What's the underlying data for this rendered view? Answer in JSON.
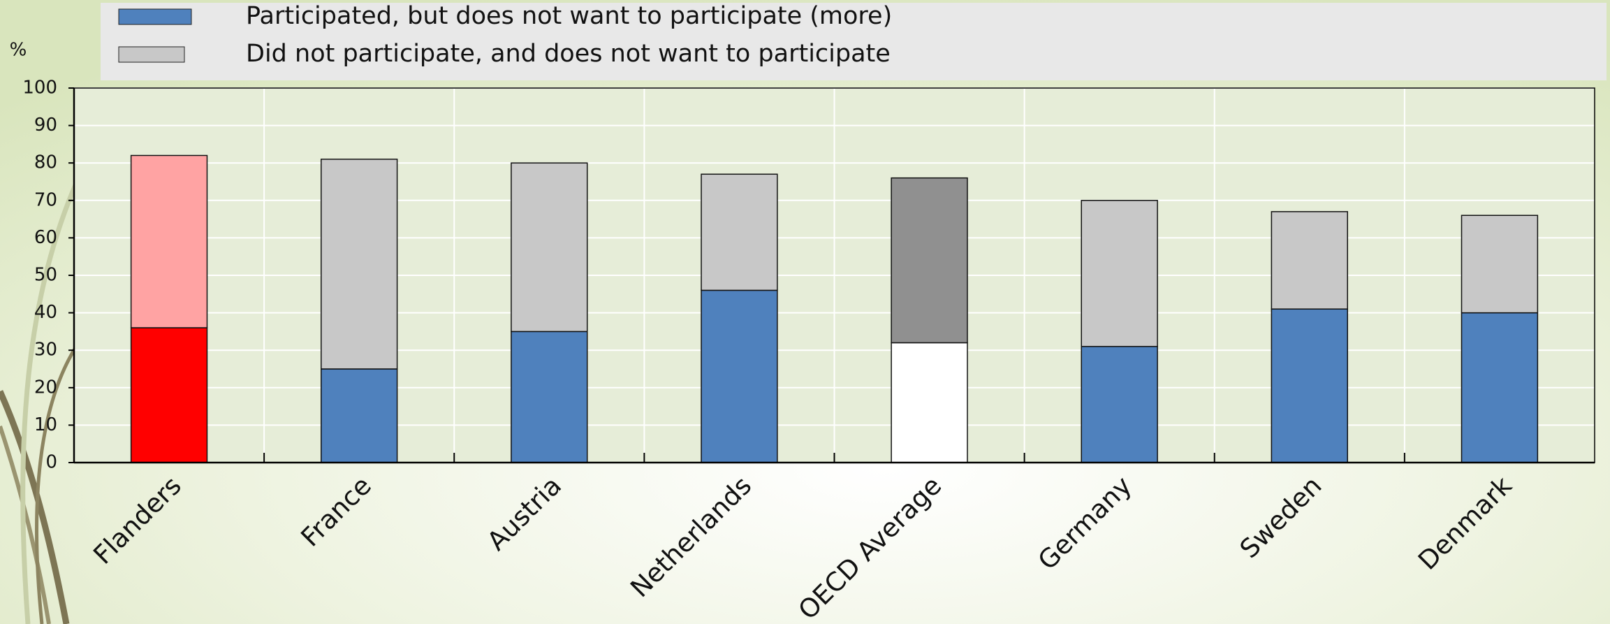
{
  "chart_data": {
    "type": "stacked_bar",
    "y_label": "%",
    "categories": [
      "Flanders",
      "France",
      "Austria",
      "Netherlands",
      "OECD Average",
      "Germany",
      "Sweden",
      "Denmark"
    ],
    "series": [
      {
        "name": "Participated,  but does not want to participate (more)",
        "color": "#4f81bd",
        "colors": [
          "#ff0000",
          "#4f81bd",
          "#4f81bd",
          "#4f81bd",
          "#ffffff",
          "#4f81bd",
          "#4f81bd",
          "#4f81bd"
        ],
        "values": [
          36,
          25,
          35,
          46,
          32,
          31,
          41,
          40
        ]
      },
      {
        "name": "Did not participate, and does not want to participate",
        "color": "#c8c8c8",
        "colors": [
          "#ffa3a3",
          "#c8c8c8",
          "#c8c8c8",
          "#c8c8c8",
          "#909090",
          "#c8c8c8",
          "#c8c8c8",
          "#c8c8c8"
        ],
        "values": [
          46,
          56,
          45,
          31,
          44,
          39,
          26,
          26
        ]
      }
    ],
    "ylim": [
      0,
      100
    ],
    "yticks": [
      0,
      10,
      20,
      30,
      40,
      50,
      60,
      70,
      80,
      90,
      100
    ],
    "grid": true
  }
}
